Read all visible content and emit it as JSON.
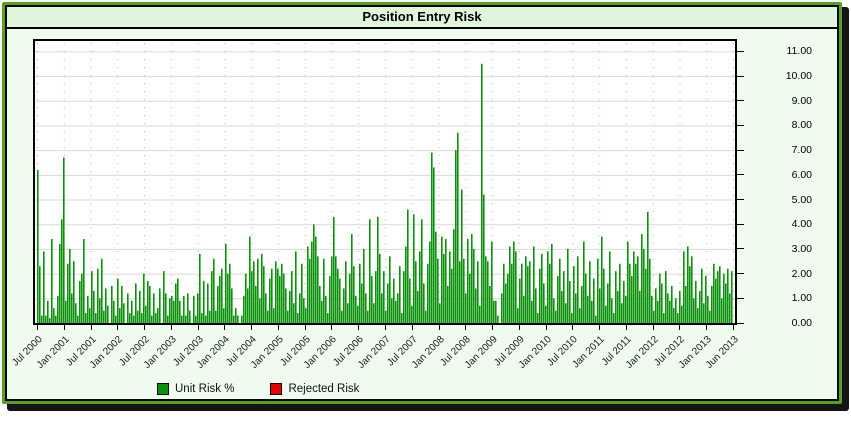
{
  "window": {
    "title": "Position Entry Risk"
  },
  "legend": {
    "items": [
      {
        "label": "Unit Risk %",
        "color": "#0a930a"
      },
      {
        "label": "Rejected Risk",
        "color": "#ee0000"
      }
    ]
  },
  "colors": {
    "frame_green": "#58a11d",
    "title_bg": "#dff6dc",
    "body_bg": "#f0fbf0",
    "plot_bg": "#ffffff",
    "bar_green": "#0a930a",
    "rejected_red": "#ee0000",
    "hgrid": "#d9d9d9",
    "vgrid": "#b3b3b3",
    "axis": "#000000"
  },
  "chart_data": {
    "type": "bar",
    "title": "Position Entry Risk",
    "xlabel": "",
    "ylabel": "",
    "x_axis_type": "time",
    "x_tick_labels": [
      "Jul 2000",
      "Jan 2001",
      "Jul 2001",
      "Jan 2002",
      "Jul 2002",
      "Jan 2003",
      "Jul 2003",
      "Jan 2004",
      "Jul 2004",
      "Jan 2005",
      "Jul 2005",
      "Jan 2006",
      "Jul 2006",
      "Jan 2007",
      "Jul 2007",
      "Jan 2008",
      "Jul 2008",
      "Jan 2009",
      "Jul 2009",
      "Jan 2010",
      "Jul 2010",
      "Jan 2011",
      "Jul 2011",
      "Jan 2012",
      "Jul 2012",
      "Jan 2013",
      "Jun 2013"
    ],
    "y_tick_labels": [
      "11.00",
      "10.00",
      "9.00",
      "8.00",
      "7.00",
      "6.00",
      "5.00",
      "4.00",
      "3.00",
      "2.00",
      "1.00",
      "0.00"
    ],
    "ylim": [
      0,
      11.42
    ],
    "grid": {
      "horizontal": "solid",
      "vertical": "dotted"
    },
    "legend_position": "bottom",
    "series": [
      {
        "name": "Unit Risk %",
        "color": "#0a930a",
        "values": [
          6.2,
          2.3,
          0.3,
          2.9,
          0.3,
          0.9,
          0.2,
          3.4,
          0.6,
          0.3,
          1.1,
          3.2,
          4.2,
          6.7,
          0.9,
          2.4,
          3.0,
          1.2,
          2.5,
          0.8,
          0.3,
          1.7,
          2.0,
          3.4,
          0.4,
          1.1,
          0.6,
          2.1,
          1.3,
          0.4,
          2.2,
          1.0,
          2.6,
          0.5,
          1.4,
          0.7,
          0,
          1.5,
          0.9,
          0.3,
          1.8,
          0.6,
          1.5,
          0.8,
          0,
          1.2,
          0.4,
          0.9,
          0.3,
          1.6,
          0.5,
          1.3,
          0.4,
          2.0,
          0.7,
          1.7,
          1.5,
          0.3,
          1.2,
          0.4,
          0.6,
          1.4,
          0,
          2.1,
          1.2,
          0.3,
          1.0,
          1.1,
          0.9,
          1.6,
          1.8,
          0.9,
          0.3,
          1.1,
          0.3,
          1.2,
          0.5,
          0,
          1.1,
          0.3,
          1.2,
          2.8,
          0.4,
          1.7,
          0.3,
          1.6,
          0.5,
          2.1,
          2.6,
          0.5,
          1.5,
          1.9,
          2.2,
          0.6,
          3.2,
          2.0,
          2.4,
          1.4,
          0.3,
          0.6,
          0.3,
          0,
          0.3,
          1.1,
          2.0,
          1.4,
          3.5,
          2.1,
          2.5,
          1.5,
          2.6,
          1.0,
          2.8,
          2.3,
          1.2,
          0.5,
          1.8,
          2.2,
          0.6,
          2.5,
          2.2,
          1.9,
          2.4,
          2.0,
          1.4,
          0.5,
          1.3,
          2.1,
          0.8,
          2.9,
          0.4,
          1.2,
          2.4,
          1.0,
          0.6,
          3.1,
          2.6,
          3.3,
          4.0,
          3.5,
          2.7,
          1.5,
          0.9,
          2.6,
          1.1,
          0.4,
          1.9,
          2.7,
          4.3,
          2.7,
          2.2,
          1.8,
          0.5,
          1.4,
          2.5,
          0.8,
          2.0,
          3.6,
          2.3,
          1.1,
          0.7,
          2.4,
          1.6,
          3.0,
          1.2,
          0.5,
          4.2,
          1.9,
          0.8,
          2.1,
          4.3,
          2.8,
          1.2,
          2.1,
          0.5,
          1.6,
          2.7,
          1.0,
          1.8,
          0.9,
          1.2,
          2.3,
          0.4,
          2.1,
          3.1,
          4.6,
          1.8,
          0.7,
          4.4,
          2.5,
          1.3,
          2.9,
          4.2,
          1.6,
          0.5,
          2.4,
          3.3,
          6.9,
          6.3,
          3.7,
          2.6,
          0.8,
          3.5,
          2.8,
          3.4,
          1.5,
          2.9,
          2.2,
          3.8,
          7.0,
          7.7,
          2.5,
          5.4,
          2.6,
          1.2,
          3.4,
          2.0,
          3.6,
          3.0,
          1.4,
          2.5,
          0.7,
          10.5,
          5.2,
          2.7,
          2.5,
          1.5,
          3.3,
          0.9,
          0.9,
          0.3,
          0,
          1.2,
          2.4,
          1.6,
          2.0,
          3.1,
          2.4,
          3.3,
          2.9,
          0.6,
          1.8,
          2.4,
          1.1,
          2.7,
          2.3,
          2.5,
          0.9,
          3.1,
          1.4,
          0.4,
          2.2,
          2.8,
          1.6,
          0.7,
          2.9,
          2.4,
          3.2,
          1.0,
          0.5,
          1.9,
          2.6,
          1.3,
          2.1,
          0.8,
          3.0,
          1.7,
          0.4,
          2.3,
          1.2,
          2.7,
          0.6,
          1.5,
          3.3,
          2.0,
          1.1,
          2.5,
          0.9,
          1.8,
          0.3,
          2.6,
          1.4,
          3.5,
          2.2,
          0.7,
          1.6,
          2.9,
          1.0,
          0.4,
          2.1,
          1.3,
          2.4,
          0.8,
          1.7,
          1.1,
          3.3,
          2.4,
          1.9,
          2.9,
          2.4,
          2.7,
          1.3,
          3.6,
          3.0,
          2.2,
          4.5,
          2.6,
          1.1,
          0.5,
          1.4,
          0.9,
          2.0,
          1.6,
          0.4,
          2.1,
          1.2,
          0.9,
          1.5,
          0.6,
          1.0,
          0.4,
          1.3,
          0.7,
          2.9,
          1.5,
          3.1,
          2.3,
          2.7,
          1.0,
          1.7,
          0.6,
          1.3,
          2.2,
          0.8,
          1.9,
          1.1,
          0.5,
          1.5,
          2.4,
          1.8,
          2.1,
          2.3,
          1.0,
          2.0,
          1.6,
          2.2,
          1.2,
          2.1
        ]
      },
      {
        "name": "Rejected Risk",
        "color": "#ee0000",
        "values": []
      }
    ]
  }
}
